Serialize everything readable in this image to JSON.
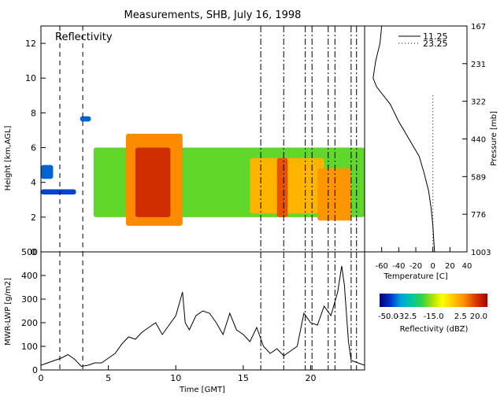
{
  "title": "Measurements, SHB, July 16, 1998",
  "chart_data": [
    {
      "type": "heatmap",
      "panel": "reflectivity",
      "annotation": "Reflectivity",
      "xlabel": "",
      "ylabel": "Height [km,AGL]",
      "xlim": [
        0,
        24
      ],
      "ylim": [
        0,
        13
      ],
      "yticks": [
        0,
        2,
        4,
        6,
        8,
        10,
        12
      ],
      "colorbar": {
        "label": "Reflectivity (dBZ)",
        "range": [
          -50.0,
          20.0
        ],
        "ticks": [
          "-50.0",
          "-32.5",
          "-15.0",
          "2.5",
          "20.0"
        ]
      },
      "dash_lines_x": [
        1.4,
        3.1
      ],
      "dashdot_lines_x": [
        16.3,
        18.0,
        19.6,
        20.1,
        21.3,
        21.8,
        23.0,
        23.4
      ],
      "cloud_regions": [
        {
          "x": [
            0.0,
            0.9
          ],
          "y": [
            4.2,
            5.0
          ],
          "dbz": -40
        },
        {
          "x": [
            0.0,
            2.6
          ],
          "y": [
            3.3,
            3.6
          ],
          "dbz": -42
        },
        {
          "x": [
            2.9,
            3.7
          ],
          "y": [
            7.5,
            7.8
          ],
          "dbz": -40
        },
        {
          "x": [
            3.9,
            24.0
          ],
          "y": [
            2.0,
            6.0
          ],
          "dbz": -20
        },
        {
          "x": [
            6.3,
            10.5
          ],
          "y": [
            1.5,
            6.8
          ],
          "dbz": 5
        },
        {
          "x": [
            7.0,
            9.6
          ],
          "y": [
            2.0,
            6.0
          ],
          "dbz": 14
        },
        {
          "x": [
            15.5,
            21.0
          ],
          "y": [
            2.2,
            5.4
          ],
          "dbz": 0
        },
        {
          "x": [
            17.5,
            18.3
          ],
          "y": [
            2.0,
            5.4
          ],
          "dbz": 10
        },
        {
          "x": [
            20.5,
            23.0
          ],
          "y": [
            1.8,
            4.8
          ],
          "dbz": 4
        }
      ]
    },
    {
      "type": "line",
      "panel": "lwp",
      "xlabel": "Time [GMT]",
      "ylabel": "MWR-LWP [g/m2]",
      "xlim": [
        0,
        24
      ],
      "ylim": [
        0,
        500
      ],
      "xticks": [
        0,
        5,
        10,
        15,
        20
      ],
      "yticks": [
        0,
        100,
        200,
        300,
        400,
        500
      ],
      "x": [
        0.0,
        0.5,
        1.0,
        1.5,
        2.0,
        2.5,
        3.0,
        3.5,
        4.0,
        4.5,
        5.0,
        5.5,
        6.0,
        6.5,
        7.0,
        7.5,
        8.0,
        8.5,
        9.0,
        9.5,
        10.0,
        10.5,
        10.7,
        11.0,
        11.5,
        12.0,
        12.5,
        13.0,
        13.5,
        14.0,
        14.5,
        15.0,
        15.5,
        16.0,
        16.5,
        17.0,
        17.5,
        18.0,
        18.5,
        19.0,
        19.5,
        20.0,
        20.5,
        21.0,
        21.5,
        22.0,
        22.3,
        22.5,
        22.8,
        23.0,
        23.5,
        24.0
      ],
      "values": [
        20,
        30,
        40,
        50,
        65,
        45,
        15,
        20,
        30,
        30,
        50,
        70,
        110,
        140,
        130,
        160,
        180,
        200,
        150,
        190,
        230,
        330,
        200,
        170,
        230,
        250,
        240,
        200,
        150,
        240,
        170,
        150,
        120,
        180,
        100,
        70,
        90,
        60,
        80,
        100,
        240,
        200,
        190,
        270,
        230,
        330,
        440,
        360,
        120,
        40,
        30,
        20
      ]
    },
    {
      "type": "line",
      "panel": "temperature",
      "xlabel": "Temperature [C]",
      "ylabel": "Pressure [mb]",
      "xlim": [
        -80,
        40
      ],
      "xticks": [
        -60,
        -40,
        -20,
        0,
        20,
        40
      ],
      "pressure_ticks": [
        "167",
        "231",
        "322",
        "440",
        "589",
        "776",
        "1003"
      ],
      "legend": [
        {
          "name": "11.25",
          "style": "solid"
        },
        {
          "name": "23.25",
          "style": "dotted"
        }
      ],
      "series": [
        {
          "name": "11.25",
          "temperature": [
            -60,
            -62,
            -67,
            -70,
            -66,
            -50,
            -40,
            -28,
            -16,
            -10,
            -5,
            -2,
            0,
            2
          ],
          "height_km": [
            13.0,
            12.0,
            11.0,
            10.0,
            9.5,
            8.5,
            7.5,
            6.5,
            5.5,
            4.5,
            3.5,
            2.5,
            1.5,
            0.0
          ]
        },
        {
          "name": "23.25",
          "temperature": [
            0,
            0,
            0,
            0
          ],
          "height_km": [
            9.0,
            6.0,
            3.0,
            0.0
          ]
        }
      ]
    }
  ]
}
